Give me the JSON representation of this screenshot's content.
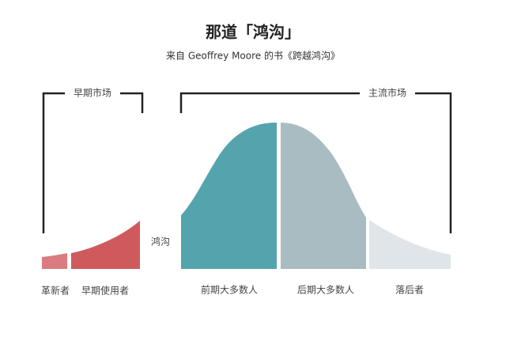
{
  "header": {
    "title": "那道「鸿沟」",
    "subtitle": "来自 Geoffrey Moore 的书《跨越鸿沟》"
  },
  "markets": {
    "early": "早期市场",
    "mainstream": "主流市场"
  },
  "chasm": "鸿沟",
  "segments": [
    "革新者",
    "早期使用者",
    "前期大多数人",
    "后期大多数人",
    "落后者"
  ]
}
